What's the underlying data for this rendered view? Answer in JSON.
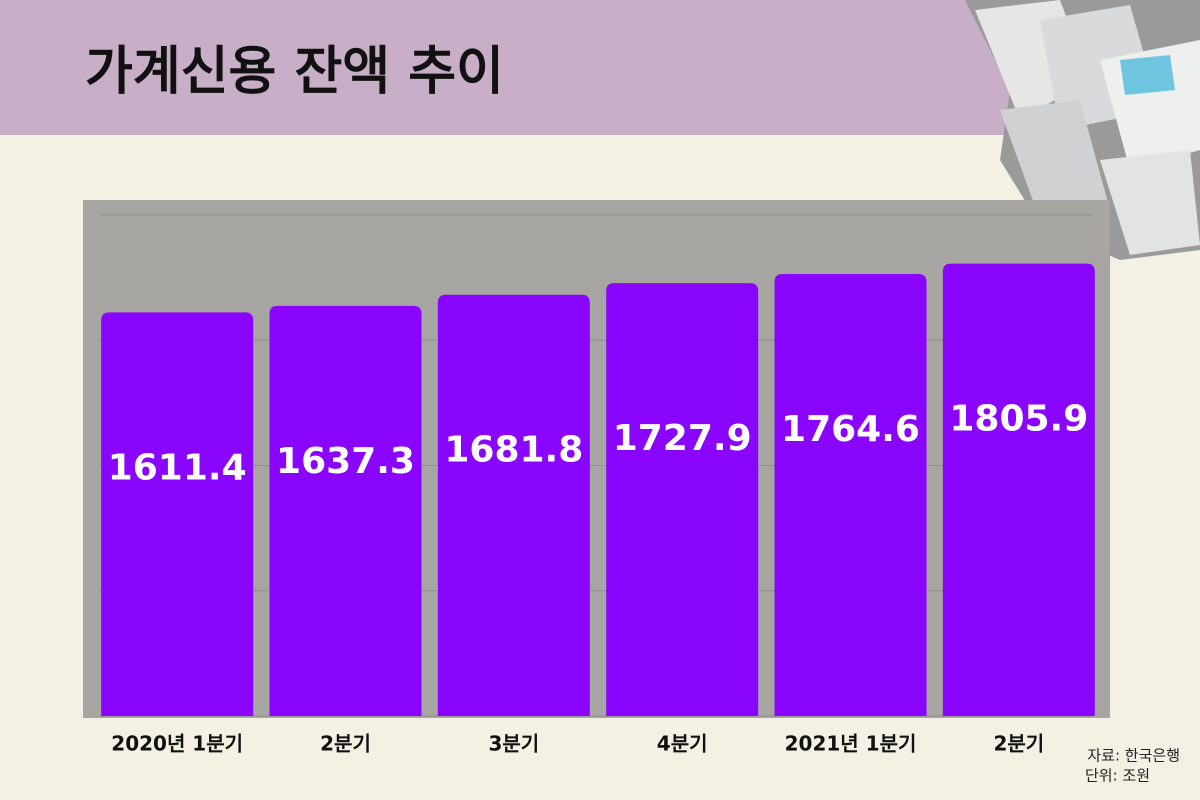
{
  "chart_data": {
    "type": "bar",
    "title": "가계신용 잔액 추이",
    "categories": [
      "2020년 1분기",
      "2분기",
      "3분기",
      "4분기",
      "2021년 1분기",
      "2분기"
    ],
    "values": [
      1611.4,
      1637.3,
      1681.8,
      1727.9,
      1764.6,
      1805.9
    ],
    "color": "#8a05fe",
    "ylim": [
      0,
      2000
    ],
    "yticks": [
      0,
      500,
      1000,
      1500,
      2000
    ],
    "grid": true,
    "source": "자료: 한국은행",
    "unit": "단위: 조원"
  }
}
